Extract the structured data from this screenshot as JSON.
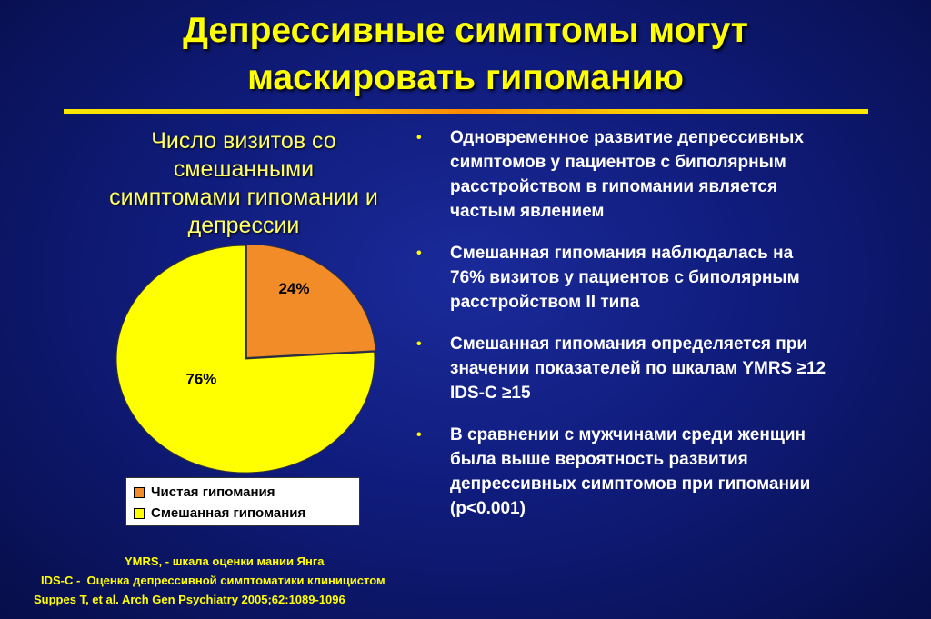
{
  "title": {
    "line1": "Депрессивные симптомы могут",
    "line2": "маскировать гипоманию"
  },
  "chart_title_lines": [
    "Число визитов со",
    "смешанными",
    "симптомами гипомании и",
    "депрессии"
  ],
  "chart_data": {
    "type": "pie",
    "title": "Число визитов со смешанными симптомами гипомании и депрессии",
    "slices": [
      {
        "label": "Чистая гипомания",
        "value": 24,
        "display": "24%",
        "color": "#f28c28"
      },
      {
        "label": "Смешанная гипомания",
        "value": 76,
        "display": "76%",
        "color": "#ffff00"
      }
    ],
    "legend_position": "bottom"
  },
  "bullets": [
    "Одновременное развитие депрессивных\nсимптомов у пациентов с биполярным\nрасстройством в гипомании является\nчастым явлением",
    "Смешанная гипомания наблюдалась на\n76% визитов у пациентов с биполярным\nрасстройством II типа",
    "Смешанная гипомания определяется при\nзначении показателей по шкалам YMRS ≥12\nIDS-C ≥15",
    "В сравнении с мужчинами  среди женщин\nбыла выше вероятность развития\nдепрессивных симптомов  при гипомании\n(p<0.001)"
  ],
  "bullet_symbol": "•",
  "footnotes": {
    "ymrs": "YMRS, - шкала оценки мании Янга",
    "idsc": "IDS-C -  Оценка депрессивной симптоматики клиницистом",
    "citation": "Suppes T, et al. Arch Gen Psychiatry 2005;62:1089-1096"
  },
  "colors": {
    "background": "#101c7c",
    "title": "#ffff00",
    "chart_title": "#ffff66",
    "bullet_text": "#ffffff",
    "footnote": "#ffff00"
  }
}
